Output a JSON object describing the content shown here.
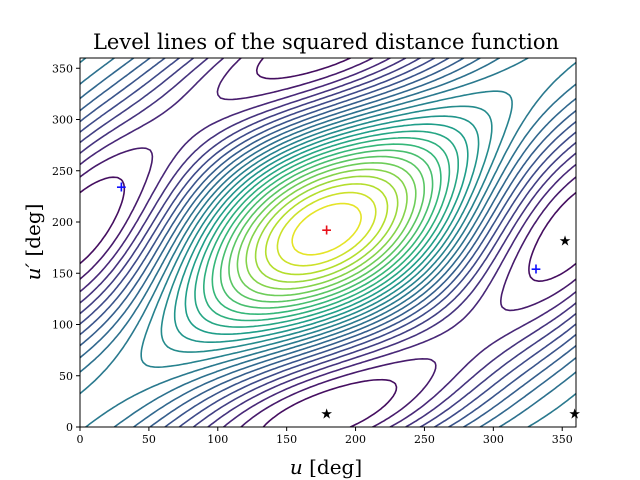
{
  "chart_data": {
    "type": "contour",
    "title": "Level lines of the squared distance function",
    "xlabel_var": "u",
    "xlabel_unit": " [deg]",
    "ylabel_var": "u′",
    "ylabel_unit": " [deg]",
    "xlim": [
      0,
      360
    ],
    "ylim": [
      0,
      360
    ],
    "xticks": [
      0,
      50,
      100,
      150,
      200,
      250,
      300,
      350
    ],
    "yticks": [
      0,
      50,
      100,
      150,
      200,
      250,
      300,
      350
    ],
    "colormap": "viridis",
    "maximum_point": {
      "label": "+",
      "x": 179,
      "y": 193,
      "color": "#e8101a"
    },
    "saddle_points": [
      {
        "label": "+",
        "x": 30,
        "y": 235,
        "color": "#1010ff"
      },
      {
        "label": "+",
        "x": 331,
        "y": 155,
        "color": "#1010ff"
      }
    ],
    "minimum_points": [
      {
        "label": "★",
        "x": 179,
        "y": 13,
        "color": "#000000"
      },
      {
        "label": "★",
        "x": 352,
        "y": 182,
        "color": "#000000"
      },
      {
        "label": "★",
        "x": 359,
        "y": 13,
        "color": "#000000"
      }
    ]
  }
}
